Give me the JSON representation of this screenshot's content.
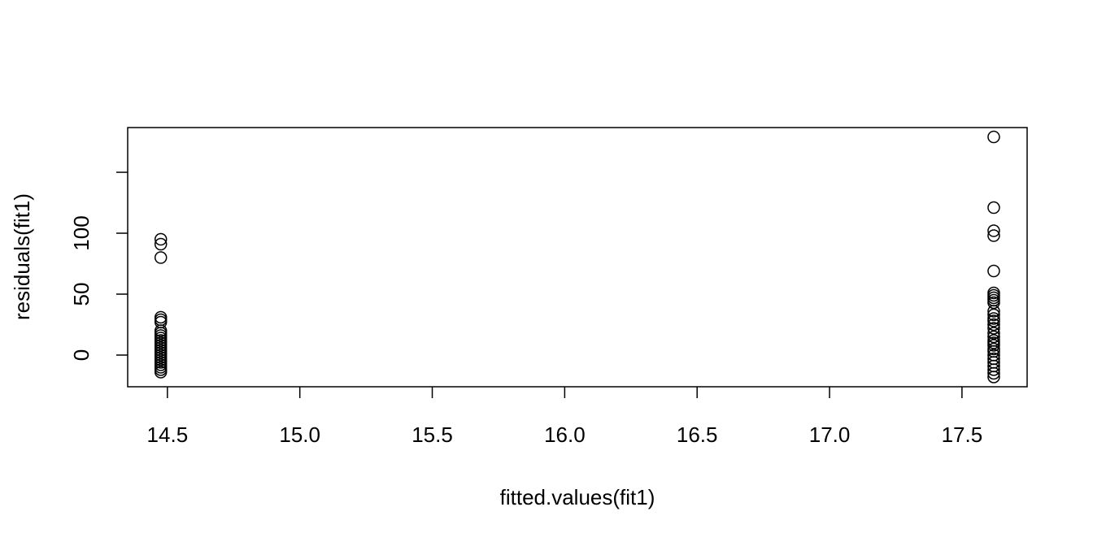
{
  "chart_data": {
    "type": "scatter",
    "xlabel": "fitted.values(fit1)",
    "ylabel": "residuals(fit1)",
    "x": [
      14.475,
      14.475,
      14.475,
      14.475,
      14.475,
      14.475,
      14.475,
      14.475,
      14.475,
      14.475,
      14.475,
      14.475,
      14.475,
      14.475,
      14.475,
      14.475,
      14.475,
      14.475,
      14.475,
      14.475,
      14.475,
      14.475,
      14.475,
      14.475,
      17.62,
      17.62,
      17.62,
      17.62,
      17.62,
      17.62,
      17.62,
      17.62,
      17.62,
      17.62,
      17.62,
      17.62,
      17.62,
      17.62,
      17.62,
      17.62,
      17.62,
      17.62,
      17.62,
      17.62,
      17.62,
      17.62,
      17.62,
      17.62,
      17.62,
      17.62,
      17.62,
      17.62,
      17.62,
      17.62
    ],
    "values": [
      95,
      91,
      80,
      31,
      29,
      27,
      20,
      18,
      16,
      14,
      12,
      10,
      8,
      6,
      4,
      2,
      0,
      -2,
      -4,
      -6,
      -8,
      -10,
      -12,
      -14,
      179,
      121,
      102,
      98,
      69,
      51,
      49,
      47,
      45,
      43,
      36,
      33,
      30,
      28,
      25,
      22,
      18,
      15,
      12,
      10,
      8,
      5,
      3,
      0,
      -3,
      -6,
      -9,
      -12,
      -15,
      -18
    ],
    "color": "#000000",
    "xlim": [
      14.35,
      17.746
    ],
    "ylim": [
      -26,
      186.7
    ],
    "xticks": [
      14.5,
      {
        "value": 15,
        "label": "15.0"
      },
      15.5,
      {
        "value": 16,
        "label": "16.0"
      },
      16.5,
      {
        "value": 17,
        "label": "17.0"
      },
      17.5
    ],
    "yticks": [
      0,
      50,
      100,
      {
        "value": 150,
        "label": null
      }
    ]
  }
}
